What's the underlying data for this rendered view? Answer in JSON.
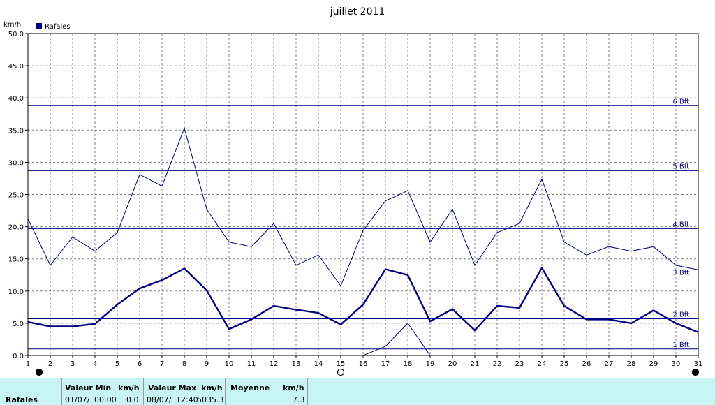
{
  "chart_data": {
    "type": "line",
    "title": "juillet 2011",
    "ylabel": "km/h",
    "legend": {
      "label": "Rafales",
      "color": "#000080",
      "placement": "top-left"
    },
    "x": [
      1,
      2,
      3,
      4,
      5,
      6,
      7,
      8,
      9,
      10,
      11,
      12,
      13,
      14,
      15,
      16,
      17,
      18,
      19,
      20,
      21,
      22,
      23,
      24,
      25,
      26,
      27,
      28,
      29,
      30,
      31
    ],
    "xlim": [
      1,
      31
    ],
    "ylim": [
      0,
      50
    ],
    "yticks": [
      "0.0",
      "5.0",
      "10.0",
      "15.0",
      "20.0",
      "25.0",
      "30.0",
      "35.0",
      "40.0",
      "45.0",
      "50.0"
    ],
    "grid": true,
    "series": [
      {
        "name": "Rafales",
        "style": "thin",
        "color": "#000080",
        "values": [
          21.2,
          14.0,
          18.4,
          16.2,
          19.1,
          28.1,
          26.3,
          35.3,
          22.7,
          17.6,
          16.9,
          20.5,
          14.0,
          15.6,
          10.8,
          19.4,
          24.0,
          25.6,
          17.6,
          22.7,
          14.0,
          19.1,
          20.5,
          27.4,
          17.6,
          15.6,
          16.9,
          16.2,
          16.9,
          14.0,
          13.3
        ]
      },
      {
        "style": "thick",
        "color": "#000080",
        "values": [
          5.2,
          4.5,
          4.5,
          4.9,
          7.9,
          10.4,
          11.7,
          13.5,
          10.1,
          4.1,
          5.6,
          7.7,
          7.1,
          6.6,
          4.8,
          7.9,
          13.4,
          12.5,
          5.3,
          7.2,
          3.9,
          7.7,
          7.4,
          13.6,
          7.7,
          5.6,
          5.6,
          5.0,
          7.0,
          5.0,
          3.6
        ]
      },
      {
        "style": "thin",
        "color": "#000080",
        "x": [
          16,
          17,
          18,
          19
        ],
        "values": [
          0.0,
          1.4,
          5.0,
          0.0
        ]
      }
    ],
    "reference_lines": [
      {
        "label": "1 Bft",
        "value": 1.0
      },
      {
        "label": "2 Bft",
        "value": 5.7
      },
      {
        "label": "3 Bft",
        "value": 12.2
      },
      {
        "label": "4 Bft",
        "value": 19.7
      },
      {
        "label": "5 Bft",
        "value": 28.7
      },
      {
        "label": "6 Bft",
        "value": 38.8
      }
    ],
    "moon_markers": [
      {
        "day": 1,
        "phase": "new"
      },
      {
        "day": 15,
        "phase": "full"
      },
      {
        "day": 31,
        "phase": "new"
      }
    ]
  },
  "footer": {
    "row_label": "Rafales",
    "min_header": "Valeur Min",
    "max_header": "Valeur Max",
    "avg_header": "Moyenne",
    "unit": "km/h",
    "min_date": "01/07/",
    "min_time": "00:00",
    "min_value": "0.0",
    "max_date": "08/07/",
    "max_time": "12:40",
    "max_extra": "50",
    "max_value": "35.3",
    "avg_value": "7.3",
    "bg_color": "#c8f4f4"
  }
}
